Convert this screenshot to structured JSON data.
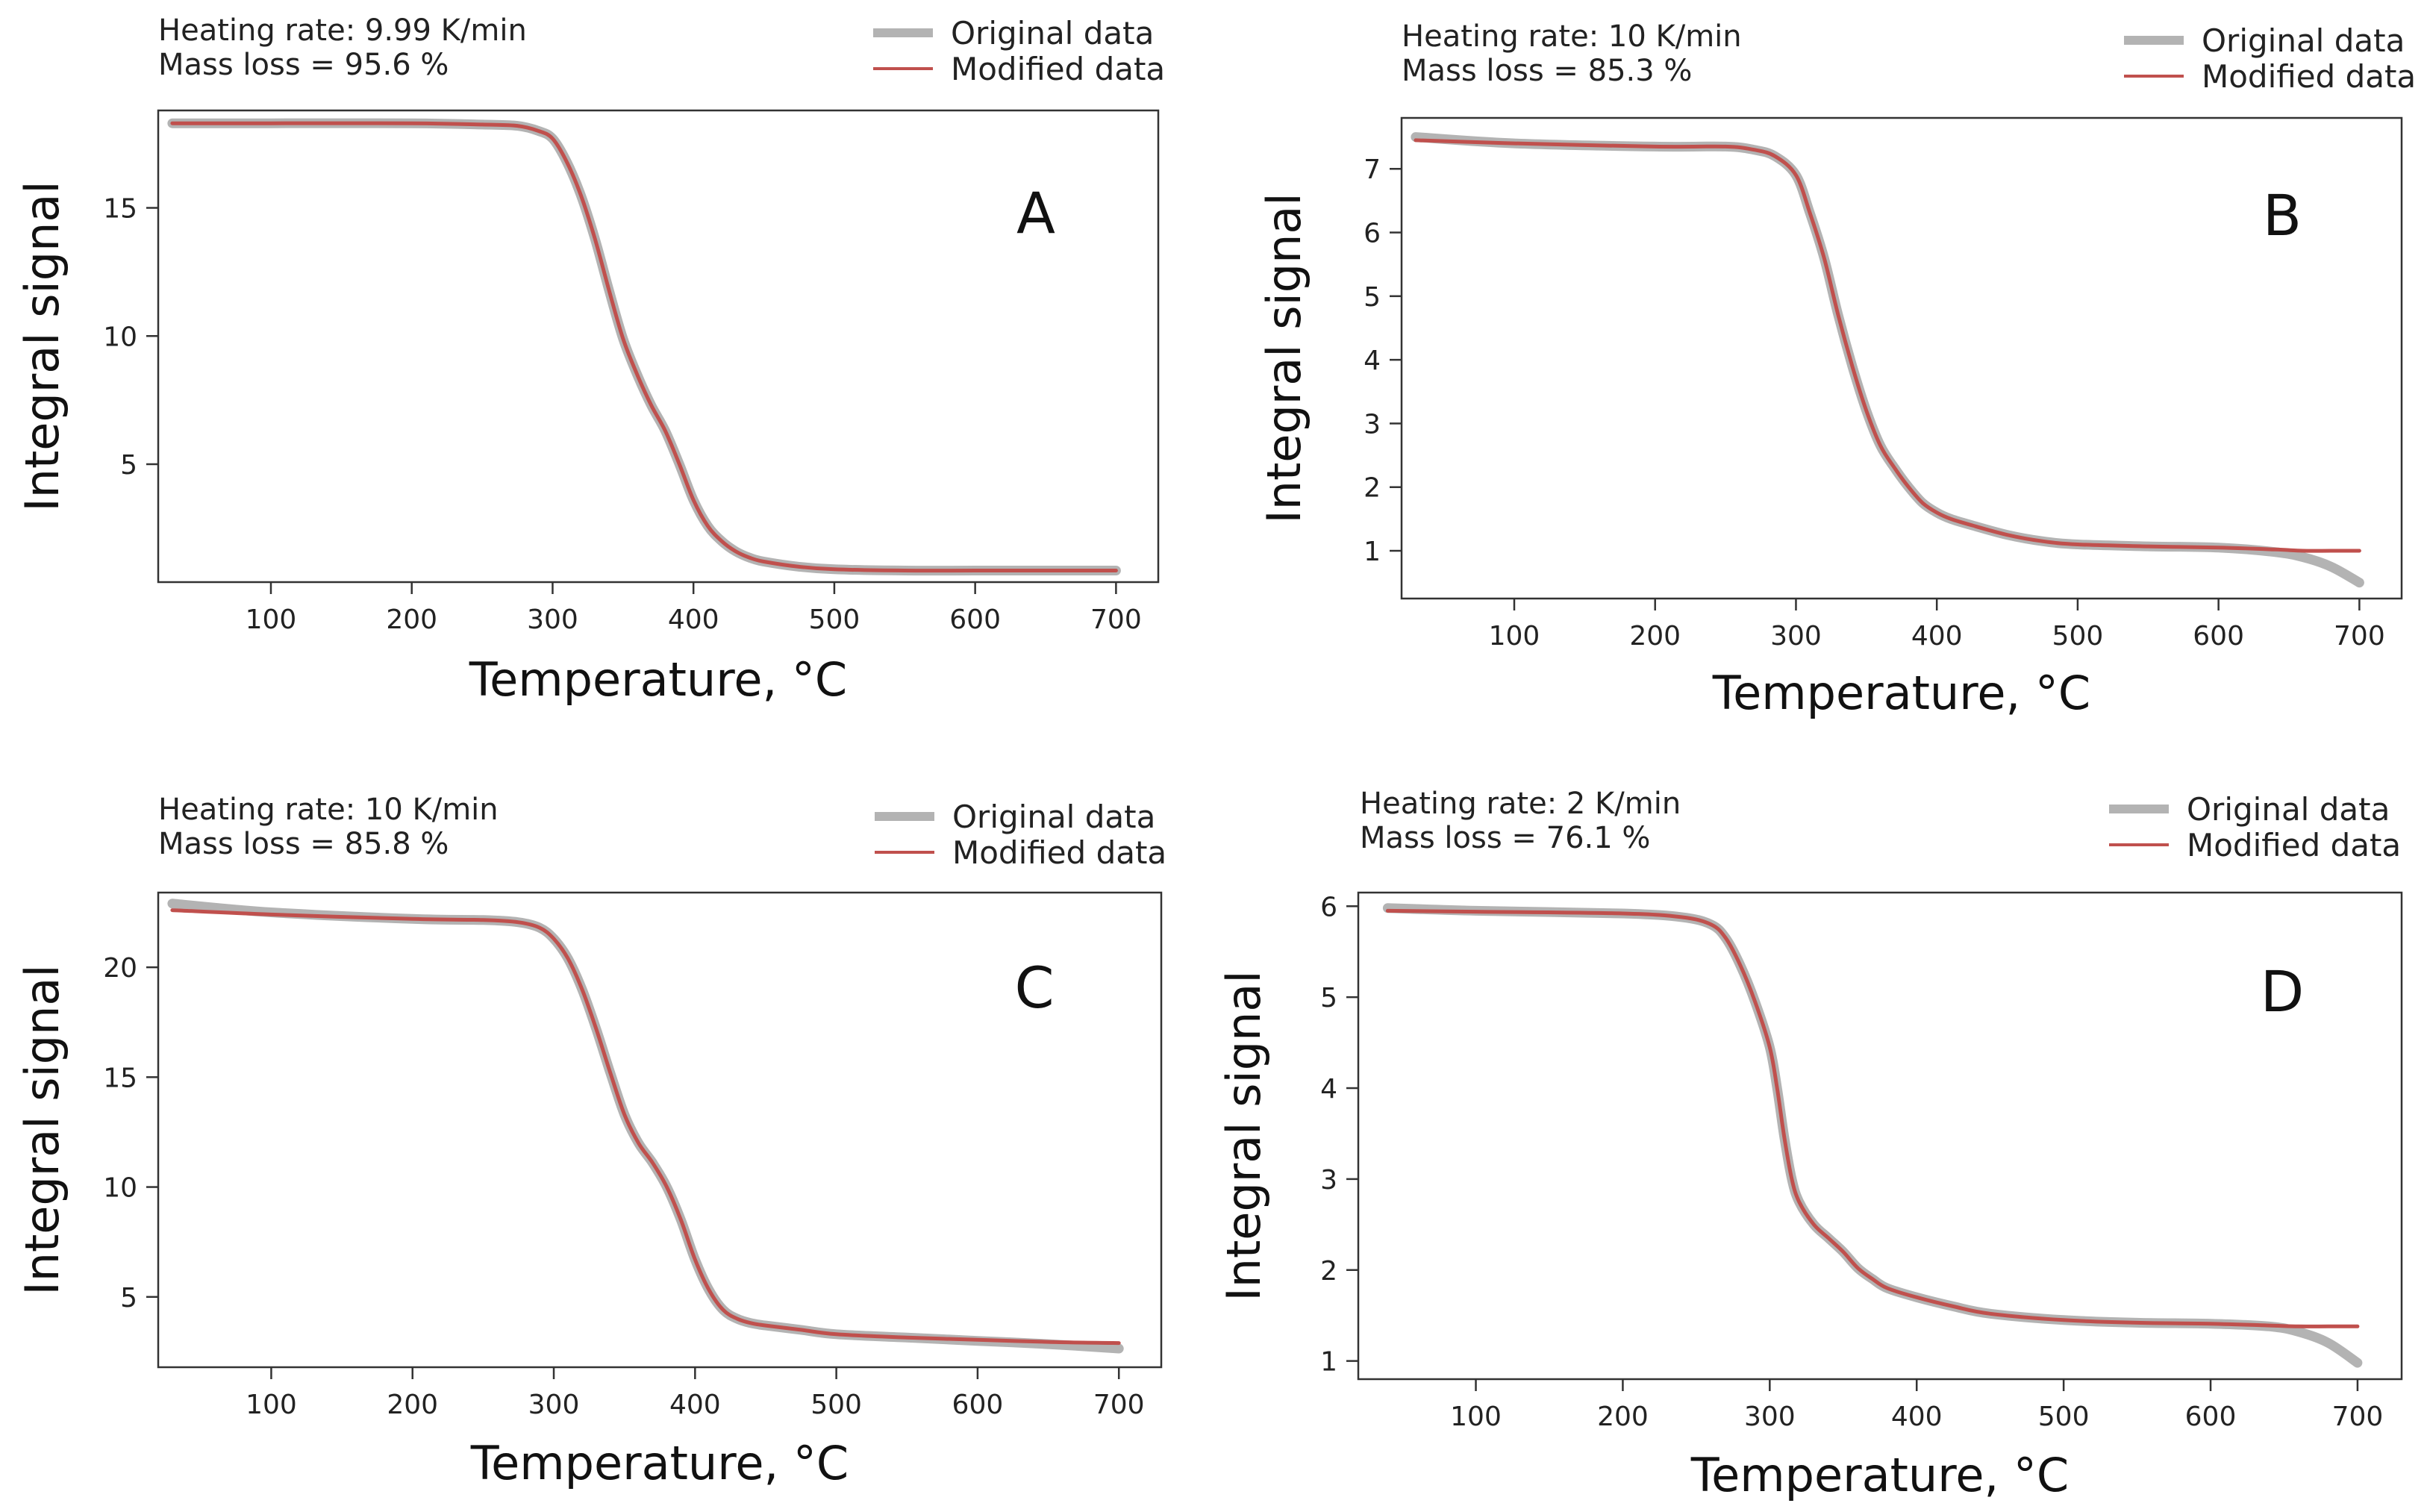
{
  "colors": {
    "original": "#b3b3b3",
    "modified": "#c0504d",
    "frame": "#333333"
  },
  "chart_data": [
    {
      "type": "line",
      "panel_label": "A",
      "heating_rate_text": "Heating rate: 9.99 K/min",
      "mass_loss_text": "Mass loss = 95.6 %",
      "xlabel": "Temperature, °C",
      "ylabel": "Integral signal",
      "xlim": [
        20,
        730
      ],
      "ylim": [
        0.4,
        18.8
      ],
      "xticks": [
        100,
        200,
        300,
        400,
        500,
        600,
        700
      ],
      "yticks": [
        5,
        10,
        15
      ],
      "legend": [
        "Original data",
        "Modified data"
      ],
      "series": [
        {
          "name": "Original data",
          "x": [
            30,
            100,
            200,
            250,
            275,
            290,
            300,
            310,
            320,
            330,
            340,
            350,
            360,
            370,
            380,
            390,
            400,
            410,
            420,
            430,
            440,
            450,
            475,
            500,
            550,
            600,
            650,
            700
          ],
          "y": [
            18.3,
            18.3,
            18.3,
            18.25,
            18.2,
            18.0,
            17.7,
            16.8,
            15.5,
            13.8,
            11.8,
            9.9,
            8.5,
            7.3,
            6.3,
            5.0,
            3.6,
            2.6,
            2.0,
            1.6,
            1.35,
            1.2,
            1.0,
            0.9,
            0.85,
            0.85,
            0.85,
            0.85
          ]
        },
        {
          "name": "Modified data",
          "x": [
            30,
            100,
            200,
            250,
            275,
            290,
            300,
            310,
            320,
            330,
            340,
            350,
            360,
            370,
            380,
            390,
            400,
            410,
            420,
            430,
            440,
            450,
            475,
            500,
            550,
            600,
            650,
            700
          ],
          "y": [
            18.3,
            18.3,
            18.3,
            18.25,
            18.2,
            18.0,
            17.7,
            16.8,
            15.5,
            13.8,
            11.8,
            9.9,
            8.5,
            7.3,
            6.3,
            5.0,
            3.6,
            2.6,
            2.0,
            1.6,
            1.35,
            1.2,
            1.0,
            0.9,
            0.85,
            0.85,
            0.85,
            0.85
          ]
        }
      ]
    },
    {
      "type": "line",
      "panel_label": "B",
      "heating_rate_text": "Heating rate: 10 K/min",
      "mass_loss_text": "Mass loss = 85.3 %",
      "xlabel": "Temperature, °C",
      "ylabel": "Integral signal",
      "xlim": [
        20,
        730
      ],
      "ylim": [
        0.25,
        7.8
      ],
      "xticks": [
        100,
        200,
        300,
        400,
        500,
        600,
        700
      ],
      "yticks": [
        1,
        2,
        3,
        4,
        5,
        6,
        7
      ],
      "legend": [
        "Original data",
        "Modified data"
      ],
      "series": [
        {
          "name": "Original data",
          "x": [
            30,
            100,
            200,
            250,
            270,
            285,
            300,
            310,
            320,
            330,
            340,
            350,
            360,
            370,
            380,
            390,
            400,
            410,
            425,
            450,
            475,
            500,
            550,
            600,
            640,
            660,
            680,
            700
          ],
          "y": [
            7.5,
            7.4,
            7.35,
            7.35,
            7.3,
            7.2,
            6.9,
            6.3,
            5.6,
            4.7,
            3.9,
            3.2,
            2.65,
            2.3,
            2.0,
            1.75,
            1.6,
            1.5,
            1.4,
            1.25,
            1.15,
            1.1,
            1.07,
            1.05,
            0.98,
            0.9,
            0.75,
            0.5
          ]
        },
        {
          "name": "Modified data",
          "x": [
            30,
            100,
            200,
            250,
            270,
            285,
            300,
            310,
            320,
            330,
            340,
            350,
            360,
            370,
            380,
            390,
            400,
            410,
            425,
            450,
            475,
            500,
            550,
            600,
            640,
            660,
            680,
            700
          ],
          "y": [
            7.45,
            7.4,
            7.35,
            7.35,
            7.3,
            7.2,
            6.9,
            6.3,
            5.6,
            4.7,
            3.9,
            3.2,
            2.65,
            2.3,
            2.0,
            1.75,
            1.6,
            1.5,
            1.4,
            1.25,
            1.15,
            1.1,
            1.07,
            1.05,
            1.02,
            1.0,
            1.0,
            1.0
          ]
        }
      ]
    },
    {
      "type": "line",
      "panel_label": "C",
      "heating_rate_text": "Heating rate: 10 K/min",
      "mass_loss_text": "Mass loss = 85.8 %",
      "xlabel": "Temperature, °C",
      "ylabel": "Integral signal",
      "xlim": [
        20,
        730
      ],
      "ylim": [
        1.8,
        23.4
      ],
      "xticks": [
        100,
        200,
        300,
        400,
        500,
        600,
        700
      ],
      "yticks": [
        5,
        10,
        15,
        20
      ],
      "legend": [
        "Original data",
        "Modified data"
      ],
      "series": [
        {
          "name": "Original data",
          "x": [
            30,
            100,
            200,
            250,
            275,
            290,
            300,
            310,
            320,
            330,
            340,
            350,
            360,
            370,
            380,
            390,
            400,
            410,
            420,
            430,
            440,
            450,
            475,
            500,
            550,
            600,
            650,
            700
          ],
          "y": [
            22.9,
            22.5,
            22.2,
            22.15,
            22.05,
            21.8,
            21.3,
            20.4,
            19.0,
            17.2,
            15.2,
            13.3,
            12.0,
            11.1,
            10.0,
            8.5,
            6.7,
            5.3,
            4.4,
            4.0,
            3.8,
            3.7,
            3.5,
            3.3,
            3.15,
            3.0,
            2.85,
            2.65
          ]
        },
        {
          "name": "Modified data",
          "x": [
            30,
            100,
            200,
            250,
            275,
            290,
            300,
            310,
            320,
            330,
            340,
            350,
            360,
            370,
            380,
            390,
            400,
            410,
            420,
            430,
            440,
            450,
            475,
            500,
            550,
            600,
            650,
            700
          ],
          "y": [
            22.6,
            22.4,
            22.2,
            22.15,
            22.05,
            21.8,
            21.3,
            20.4,
            19.0,
            17.2,
            15.2,
            13.3,
            12.0,
            11.1,
            10.0,
            8.5,
            6.7,
            5.3,
            4.4,
            4.0,
            3.8,
            3.7,
            3.5,
            3.3,
            3.15,
            3.05,
            2.95,
            2.9
          ]
        }
      ]
    },
    {
      "type": "line",
      "panel_label": "D",
      "heating_rate_text": "Heating rate: 2 K/min",
      "mass_loss_text": "Mass loss = 76.1 %",
      "xlabel": "Temperature, °C",
      "ylabel": "Integral signal",
      "xlim": [
        20,
        730
      ],
      "ylim": [
        0.8,
        6.15
      ],
      "xticks": [
        100,
        200,
        300,
        400,
        500,
        600,
        700
      ],
      "yticks": [
        1,
        2,
        3,
        4,
        5,
        6
      ],
      "legend": [
        "Original data",
        "Modified data"
      ],
      "series": [
        {
          "name": "Original data",
          "x": [
            40,
            100,
            200,
            240,
            260,
            270,
            280,
            290,
            300,
            305,
            310,
            315,
            320,
            330,
            340,
            350,
            360,
            370,
            380,
            400,
            425,
            450,
            500,
            550,
            600,
            640,
            660,
            680,
            700
          ],
          "y": [
            5.98,
            5.95,
            5.92,
            5.88,
            5.8,
            5.65,
            5.35,
            4.95,
            4.45,
            4.0,
            3.45,
            3.0,
            2.75,
            2.5,
            2.35,
            2.2,
            2.02,
            1.9,
            1.8,
            1.7,
            1.6,
            1.52,
            1.45,
            1.42,
            1.41,
            1.38,
            1.32,
            1.2,
            0.98
          ]
        },
        {
          "name": "Modified data",
          "x": [
            40,
            100,
            200,
            240,
            260,
            270,
            280,
            290,
            300,
            305,
            310,
            315,
            320,
            330,
            340,
            350,
            360,
            370,
            380,
            400,
            425,
            450,
            500,
            550,
            600,
            640,
            660,
            680,
            700
          ],
          "y": [
            5.95,
            5.94,
            5.92,
            5.88,
            5.8,
            5.65,
            5.35,
            4.95,
            4.45,
            4.0,
            3.45,
            3.0,
            2.75,
            2.5,
            2.35,
            2.2,
            2.02,
            1.9,
            1.8,
            1.7,
            1.6,
            1.52,
            1.45,
            1.42,
            1.41,
            1.39,
            1.38,
            1.38,
            1.38
          ]
        }
      ]
    }
  ]
}
